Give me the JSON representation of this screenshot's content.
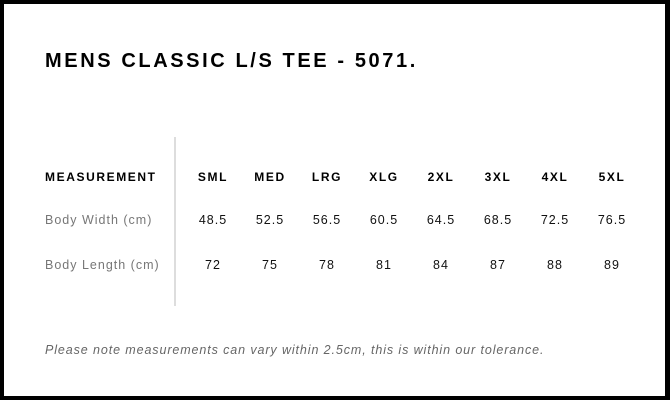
{
  "title": "MENS CLASSIC L/S TEE - 5071.",
  "table": {
    "header": {
      "label": "MEASUREMENT",
      "sizes": [
        "SML",
        "MED",
        "LRG",
        "XLG",
        "2XL",
        "3XL",
        "4XL",
        "5XL"
      ]
    },
    "rows": [
      {
        "label": "Body Width (cm)",
        "values": [
          "48.5",
          "52.5",
          "56.5",
          "60.5",
          "64.5",
          "68.5",
          "72.5",
          "76.5"
        ]
      },
      {
        "label": "Body Length (cm)",
        "values": [
          "72",
          "75",
          "78",
          "81",
          "84",
          "87",
          "88",
          "89"
        ]
      }
    ]
  },
  "note": "Please note measurements can vary within 2.5cm, this is within our tolerance."
}
